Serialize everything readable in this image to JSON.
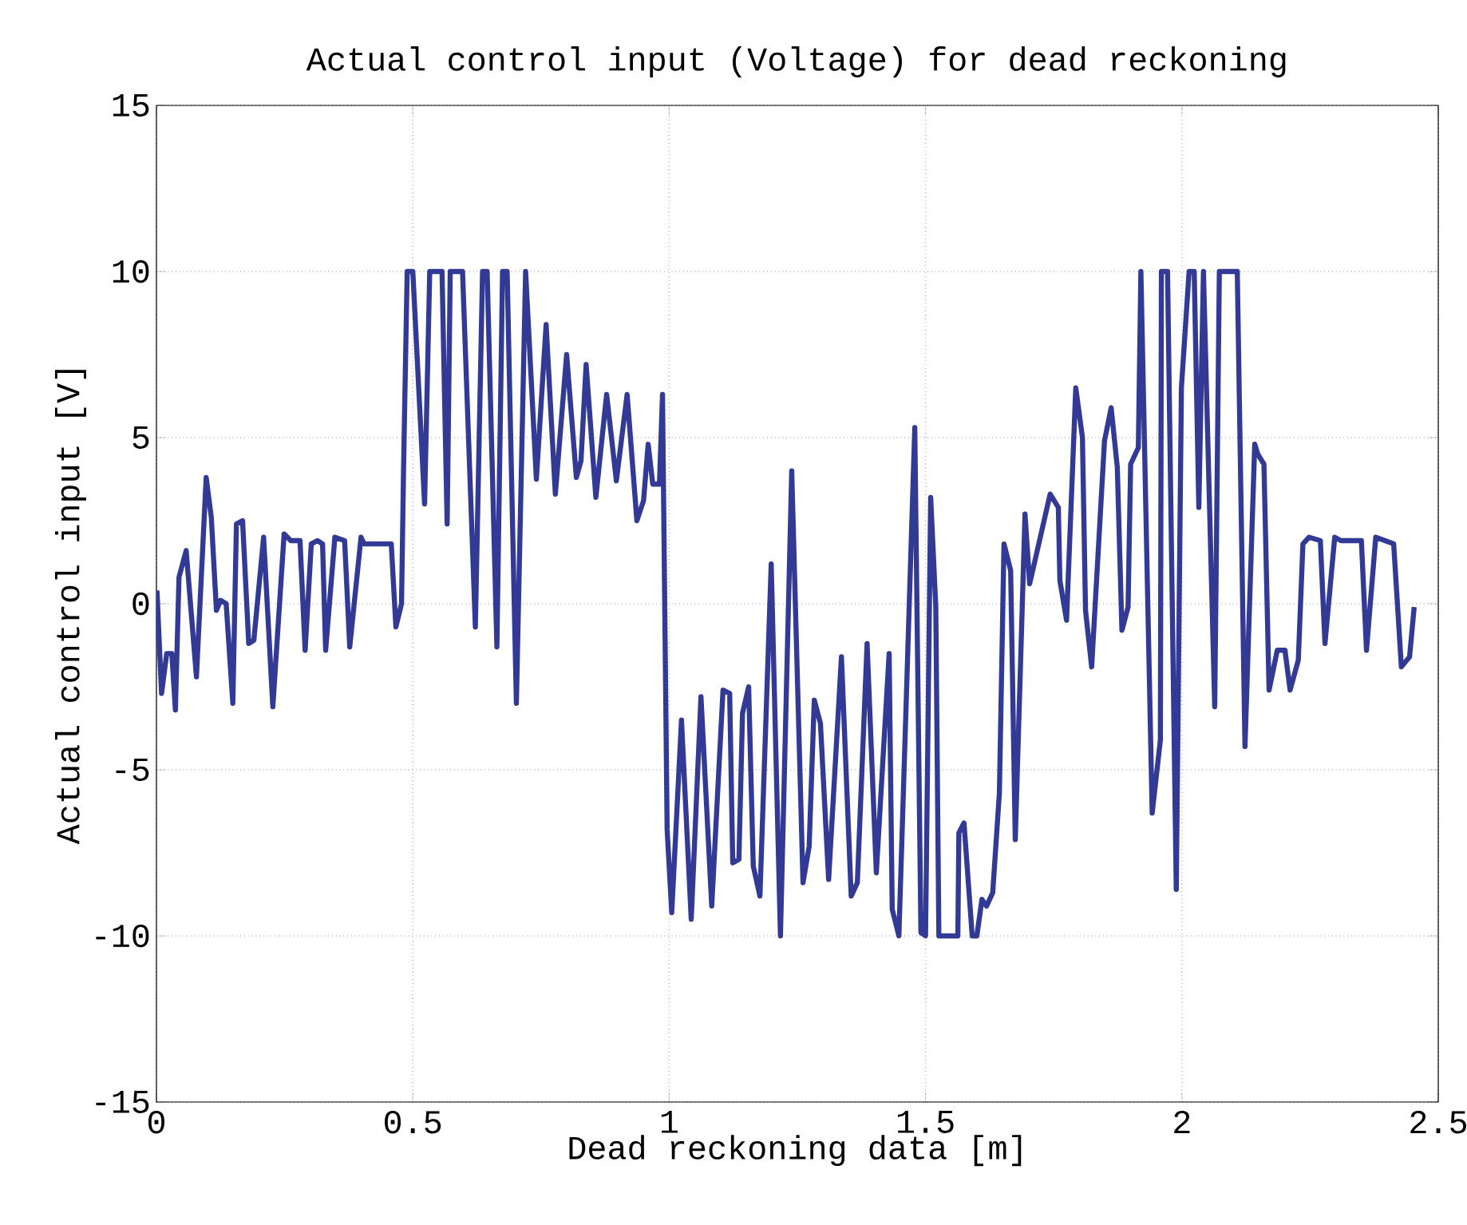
{
  "chart_data": {
    "type": "line",
    "title": "Actual control input (Voltage) for dead reckoning",
    "xlabel": "Dead reckoning data [m]",
    "ylabel": "Actual control input [V]",
    "xlim": [
      0,
      2.5
    ],
    "ylim": [
      -15,
      15
    ],
    "xticks": [
      0,
      0.5,
      1,
      1.5,
      2,
      2.5
    ],
    "yticks": [
      -15,
      -10,
      -5,
      0,
      5,
      10,
      15
    ],
    "grid": true,
    "line_style": "solid",
    "marker": "none",
    "series": [
      {
        "color": "#333a95",
        "x": [
          0.001,
          0.01,
          0.02,
          0.03,
          0.037,
          0.044,
          0.058,
          0.078,
          0.097,
          0.107,
          0.117,
          0.125,
          0.136,
          0.149,
          0.156,
          0.168,
          0.18,
          0.19,
          0.209,
          0.227,
          0.249,
          0.262,
          0.28,
          0.29,
          0.302,
          0.314,
          0.324,
          0.33,
          0.348,
          0.367,
          0.377,
          0.399,
          0.405,
          0.458,
          0.467,
          0.478,
          0.482,
          0.489,
          0.5,
          0.523,
          0.533,
          0.557,
          0.567,
          0.573,
          0.597,
          0.622,
          0.636,
          0.645,
          0.664,
          0.675,
          0.684,
          0.702,
          0.72,
          0.741,
          0.76,
          0.778,
          0.8,
          0.819,
          0.828,
          0.838,
          0.857,
          0.878,
          0.897,
          0.918,
          0.937,
          0.95,
          0.959,
          0.968,
          0.981,
          0.987,
          0.996,
          1.005,
          1.024,
          1.043,
          1.062,
          1.083,
          1.105,
          1.118,
          1.124,
          1.136,
          1.143,
          1.155,
          1.164,
          1.177,
          1.199,
          1.217,
          1.239,
          1.261,
          1.273,
          1.283,
          1.295,
          1.311,
          1.336,
          1.355,
          1.367,
          1.386,
          1.404,
          1.429,
          1.435,
          1.448,
          1.479,
          1.491,
          1.5,
          1.51,
          1.52,
          1.526,
          1.563,
          1.565,
          1.575,
          1.591,
          1.6,
          1.61,
          1.619,
          1.631,
          1.644,
          1.653,
          1.666,
          1.675,
          1.694,
          1.703,
          1.709,
          1.743,
          1.759,
          1.762,
          1.775,
          1.793,
          1.806,
          1.812,
          1.824,
          1.849,
          1.862,
          1.874,
          1.883,
          1.895,
          1.9,
          1.915,
          1.92,
          1.942,
          1.958,
          1.96,
          1.972,
          1.989,
          1.999,
          2.014,
          2.024,
          2.033,
          2.042,
          2.064,
          2.073,
          2.108,
          2.123,
          2.142,
          2.148,
          2.16,
          2.17,
          2.186,
          2.201,
          2.211,
          2.227,
          2.236,
          2.248,
          2.27,
          2.279,
          2.298,
          2.31,
          2.35,
          2.36,
          2.378,
          2.413,
          2.428,
          2.444,
          2.453
        ],
        "values": [
          0.4,
          -2.7,
          -1.5,
          -1.5,
          -3.2,
          0.8,
          1.6,
          -2.2,
          3.8,
          2.6,
          -0.2,
          0.1,
          0.0,
          -3.0,
          2.4,
          2.5,
          -1.2,
          -1.1,
          2.0,
          -3.1,
          2.1,
          1.9,
          1.9,
          -1.4,
          1.8,
          1.9,
          1.8,
          -1.4,
          2.0,
          1.9,
          -1.3,
          2.0,
          1.8,
          1.8,
          -0.7,
          0.0,
          4.1,
          10,
          10,
          3.0,
          10,
          10,
          2.4,
          10,
          10,
          -0.7,
          10,
          10,
          -1.3,
          10,
          10,
          -3.0,
          10,
          3.75,
          8.4,
          3.3,
          7.5,
          3.8,
          4.3,
          7.2,
          3.2,
          6.3,
          3.7,
          6.3,
          2.5,
          3.1,
          4.8,
          3.6,
          3.6,
          6.3,
          -6.8,
          -9.3,
          -3.5,
          -9.5,
          -2.8,
          -9.1,
          -2.6,
          -2.7,
          -7.8,
          -7.7,
          -3.3,
          -2.5,
          -7.9,
          -8.8,
          1.2,
          -10,
          4.0,
          -8.4,
          -7.3,
          -2.9,
          -3.6,
          -8.3,
          -1.6,
          -8.8,
          -8.4,
          -1.2,
          -8.1,
          -1.5,
          -9.2,
          -10,
          5.3,
          -9.9,
          -10,
          3.2,
          -0.1,
          -10,
          -10,
          -6.9,
          -6.6,
          -10,
          -10,
          -8.9,
          -9.1,
          -8.7,
          -5.7,
          1.8,
          1.0,
          -7.1,
          2.7,
          0.6,
          1.0,
          3.3,
          2.9,
          0.7,
          -0.5,
          6.5,
          5.0,
          -0.2,
          -1.9,
          4.9,
          5.9,
          4.1,
          -0.8,
          -0.1,
          4.2,
          4.7,
          10,
          -6.3,
          -4.1,
          10,
          10,
          -8.6,
          6.5,
          10,
          10,
          2.9,
          10,
          -3.1,
          10,
          10,
          -4.3,
          4.8,
          4.5,
          4.2,
          -2.6,
          -1.4,
          -1.4,
          -2.6,
          -1.7,
          1.8,
          2.0,
          1.9,
          -1.2,
          2.0,
          1.9,
          1.9,
          -1.4,
          2.0,
          1.8,
          -1.9,
          -1.6,
          -0.1
        ]
      }
    ]
  }
}
